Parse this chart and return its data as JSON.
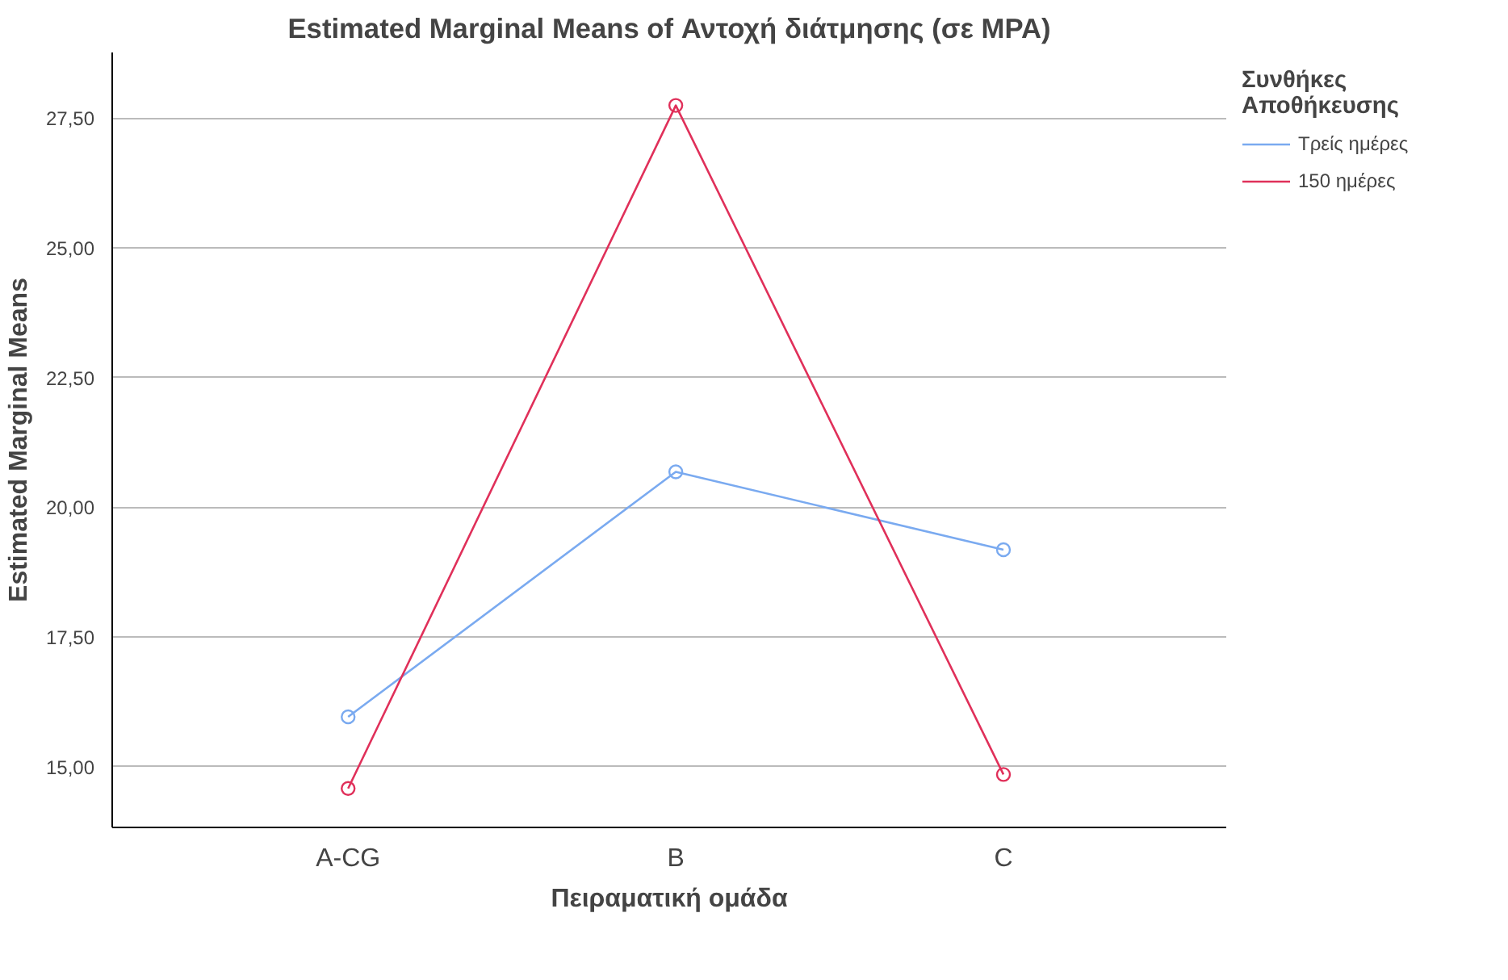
{
  "chart_data": {
    "type": "line",
    "title": "Estimated Marginal Means of Αντοχή διάτμησης (σε MPA)",
    "xlabel": "Πειραματική ομάδα",
    "ylabel": "Estimated Marginal Means",
    "legend_title": "Συνθήκες Αποθήκευσης",
    "categories": [
      "A-CG",
      "B",
      "C"
    ],
    "series": [
      {
        "name": "Τρείς ημέρες",
        "color": "#7aaaf0",
        "values": [
          15.96,
          20.68,
          19.18
        ]
      },
      {
        "name": "150 ημέρες",
        "color": "#e0305a",
        "values": [
          14.58,
          27.74,
          14.85
        ]
      }
    ],
    "ylim": [
      13.83,
      28.76
    ],
    "yticks": [
      {
        "value": 15,
        "label": "15,00"
      },
      {
        "value": 17.5,
        "label": "17,50"
      },
      {
        "value": 20,
        "label": "20,00"
      },
      {
        "value": 22.5,
        "label": "22,50"
      },
      {
        "value": 25,
        "label": "25,00"
      },
      {
        "value": 27.5,
        "label": "27,50"
      }
    ],
    "grid": "y",
    "legend": "top right",
    "marker": "circle",
    "line_style": "solid"
  }
}
